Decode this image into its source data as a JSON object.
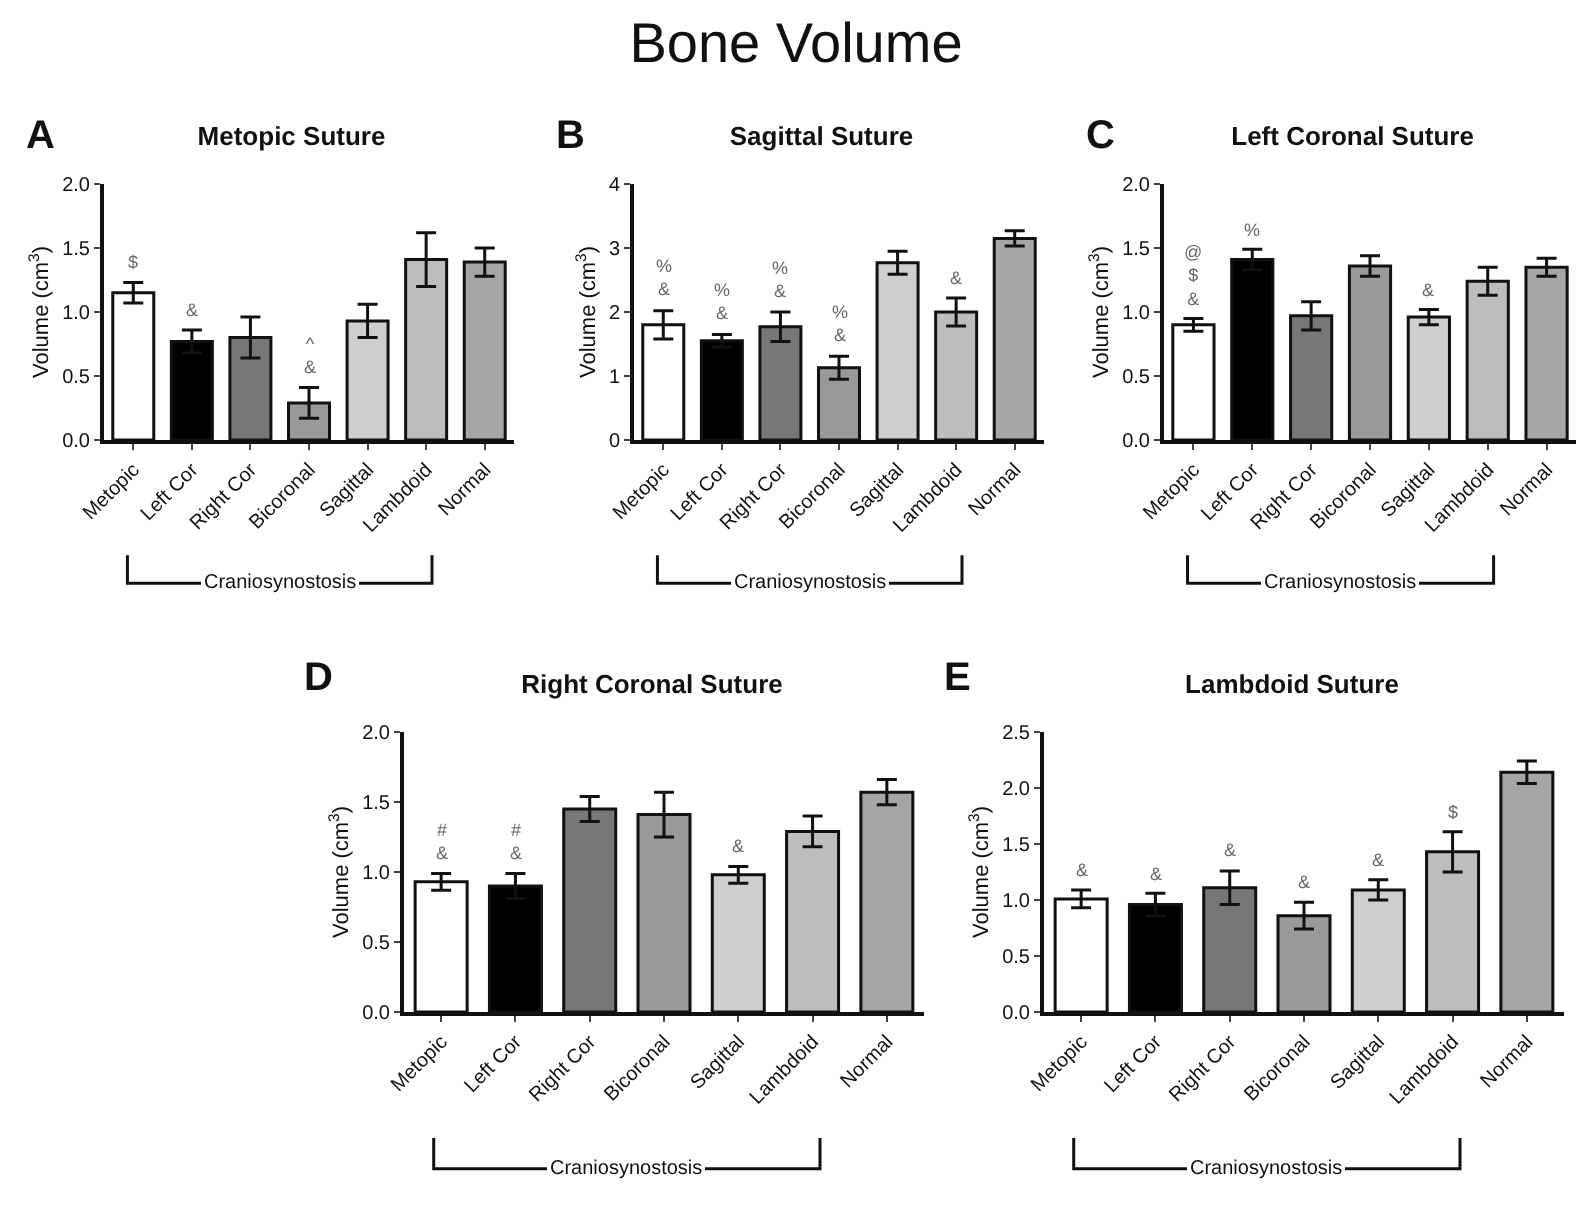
{
  "chart_data": [
    {
      "type": "other",
      "title": "Bone Volume"
    },
    {
      "type": "bar",
      "title": "Metopic Suture",
      "subtitle": "A",
      "ylabel": "Volume (cm$^{3}$)",
      "categories": [
        "Metopic",
        "Left Cor",
        "Right Cor",
        "Bicoronal",
        "Sagittal",
        "Lambdoid",
        "Normal"
      ],
      "colors": [
        "#ffffff",
        "#000000",
        "#777777",
        "#999999",
        "#cfcfcf",
        "#bdbdbd",
        "#a6a6a6"
      ],
      "values": [
        1.15,
        0.77,
        0.8,
        0.29,
        0.93,
        1.41,
        1.39
      ],
      "errors": [
        0.08,
        0.09,
        0.16,
        0.12,
        0.13,
        0.21,
        0.11
      ],
      "ylim": [
        0,
        2
      ],
      "yticks": [
        {
          "value": 0,
          "label": "0.0"
        },
        0.5,
        {
          "value": 1,
          "label": "1.0"
        },
        1.5,
        {
          "value": 2,
          "label": "2.0"
        }
      ],
      "grid": false,
      "annotations": [
        {
          "text": "$",
          "x": "Metopic",
          "y": 1.23
        },
        {
          "text": "&",
          "x": "Left Cor",
          "y": 0.86
        },
        {
          "text": "^\n&",
          "x": "Bicoronal",
          "y": 0.41
        },
        "Craniosynostosis"
      ]
    },
    {
      "type": "bar",
      "title": "Sagittal Suture",
      "subtitle": "B",
      "ylabel": "Volume (cm$^{3}$)",
      "categories": [
        "Metopic",
        "Left Cor",
        "Right Cor",
        "Bicoronal",
        "Sagittal",
        "Lambdoid",
        "Normal"
      ],
      "colors": [
        "#ffffff",
        "#000000",
        "#777777",
        "#999999",
        "#cfcfcf",
        "#bdbdbd",
        "#a6a6a6"
      ],
      "values": [
        1.8,
        1.55,
        1.77,
        1.13,
        2.77,
        2.0,
        3.15
      ],
      "errors": [
        0.22,
        0.1,
        0.23,
        0.18,
        0.18,
        0.22,
        0.12
      ],
      "ylim": [
        0,
        4
      ],
      "yticks": [
        0,
        1,
        2,
        3,
        4
      ],
      "grid": false,
      "annotations": [
        {
          "text": "%\n&",
          "x": "Metopic",
          "y": 2.02
        },
        {
          "text": "%\n&",
          "x": "Left Cor",
          "y": 1.65
        },
        {
          "text": "%\n&",
          "x": "Right Cor",
          "y": 2.0
        },
        {
          "text": "%\n&",
          "x": "Bicoronal",
          "y": 1.31
        },
        {
          "text": "&",
          "x": "Lambdoid",
          "y": 2.22
        },
        "Craniosynostosis"
      ]
    },
    {
      "type": "bar",
      "title": "Left Coronal Suture",
      "subtitle": "C",
      "ylabel": "Volume (cm$^{3}$)",
      "categories": [
        "Metopic",
        "Left Cor",
        "Right Cor",
        "Bicoronal",
        "Sagittal",
        "Lambdoid",
        "Normal"
      ],
      "colors": [
        "#ffffff",
        "#000000",
        "#777777",
        "#999999",
        "#cfcfcf",
        "#bdbdbd",
        "#a6a6a6"
      ],
      "values": [
        0.9,
        1.41,
        0.97,
        1.36,
        0.96,
        1.24,
        1.35
      ],
      "errors": [
        0.05,
        0.08,
        0.11,
        0.08,
        0.06,
        0.11,
        0.07
      ],
      "ylim": [
        0,
        2
      ],
      "yticks": [
        {
          "value": 0,
          "label": "0.0"
        },
        0.5,
        {
          "value": 1,
          "label": "1.0"
        },
        1.5,
        {
          "value": 2,
          "label": "2.0"
        }
      ],
      "grid": false,
      "annotations": [
        {
          "text": "@\n$\n&",
          "x": "Metopic",
          "y": 0.95
        },
        {
          "text": "%",
          "x": "Left Cor",
          "y": 1.49
        },
        {
          "text": "&",
          "x": "Sagittal",
          "y": 1.02
        },
        "Craniosynostosis"
      ]
    },
    {
      "type": "bar",
      "title": "Right Coronal Suture",
      "subtitle": "D",
      "ylabel": "Volume (cm$^{3}$)",
      "categories": [
        "Metopic",
        "Left Cor",
        "Right Cor",
        "Bicoronal",
        "Sagittal",
        "Lambdoid",
        "Normal"
      ],
      "colors": [
        "#ffffff",
        "#000000",
        "#777777",
        "#999999",
        "#cfcfcf",
        "#bdbdbd",
        "#a6a6a6"
      ],
      "values": [
        0.93,
        0.9,
        1.45,
        1.41,
        0.98,
        1.29,
        1.57
      ],
      "errors": [
        0.06,
        0.09,
        0.09,
        0.16,
        0.06,
        0.11,
        0.09
      ],
      "ylim": [
        0,
        2
      ],
      "yticks": [
        {
          "value": 0,
          "label": "0.0"
        },
        0.5,
        {
          "value": 1,
          "label": "1.0"
        },
        1.5,
        {
          "value": 2,
          "label": "2.0"
        }
      ],
      "grid": false,
      "annotations": [
        {
          "text": "#\n&",
          "x": "Metopic",
          "y": 0.99
        },
        {
          "text": "#\n&",
          "x": "Left Cor",
          "y": 0.99
        },
        {
          "text": "&",
          "x": "Sagittal",
          "y": 1.04
        },
        "Craniosynostosis"
      ]
    },
    {
      "type": "bar",
      "title": "Lambdoid Suture",
      "subtitle": "E",
      "ylabel": "Volume (cm$^{3}$)",
      "categories": [
        "Metopic",
        "Left Cor",
        "Right Cor",
        "Bicoronal",
        "Sagittal",
        "Lambdoid",
        "Normal"
      ],
      "colors": [
        "#ffffff",
        "#000000",
        "#777777",
        "#999999",
        "#cfcfcf",
        "#bdbdbd",
        "#a6a6a6"
      ],
      "values": [
        1.01,
        0.96,
        1.11,
        0.86,
        1.09,
        1.43,
        2.14
      ],
      "errors": [
        0.08,
        0.1,
        0.15,
        0.12,
        0.09,
        0.18,
        0.1
      ],
      "ylim": [
        0,
        2.5
      ],
      "yticks": [
        {
          "value": 0,
          "label": "0.0"
        },
        0.5,
        {
          "value": 1,
          "label": "1.0"
        },
        1.5,
        {
          "value": 2,
          "label": "2.0"
        },
        2.5
      ],
      "grid": false,
      "annotations": [
        {
          "text": "&",
          "x": "Metopic",
          "y": 1.09
        },
        {
          "text": "&",
          "x": "Left Cor",
          "y": 1.06
        },
        {
          "text": "&",
          "x": "Right Cor",
          "y": 1.26
        },
        {
          "text": "&",
          "x": "Bicoronal",
          "y": 0.98
        },
        {
          "text": "&",
          "x": "Sagittal",
          "y": 1.18
        },
        {
          "text": "$",
          "x": "Lambdoid",
          "y": 1.61
        },
        "Craniosynostosis"
      ]
    }
  ]
}
